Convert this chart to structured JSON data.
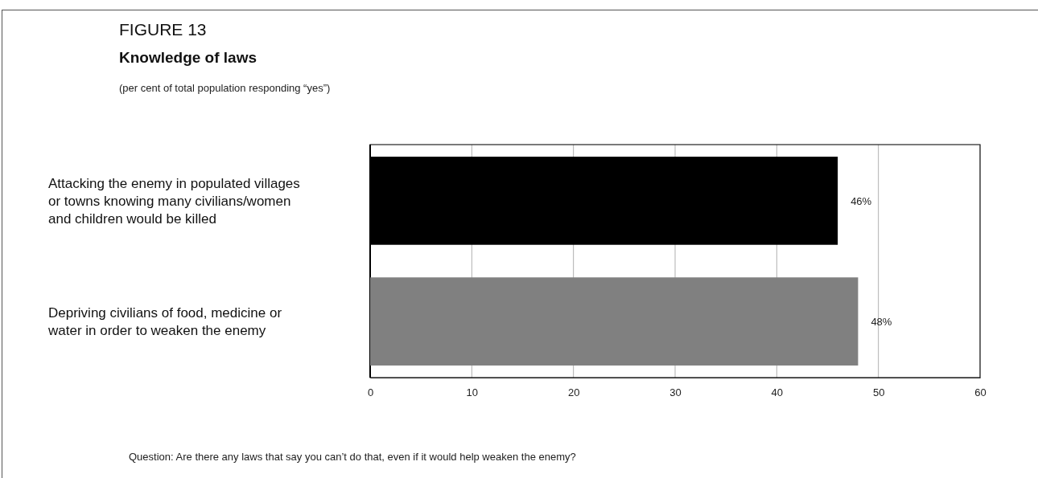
{
  "chart_data": {
    "type": "bar",
    "orientation": "horizontal",
    "title": "Knowledge of laws",
    "subtitle": "(per cent of total population responding “yes”)",
    "annotations": [
      "FIGURE 13",
      "Question: Are there any laws that say you can’t do that, even if it would help weaken the enemy?"
    ],
    "categories": [
      "Attacking the enemy in populated villages or towns knowing many civilians/women and children would be killed",
      "Depriving civilians of food, medicine or water in order to weaken the enemy"
    ],
    "values": [
      46,
      48
    ],
    "colors": [
      "#000000",
      "#808080"
    ],
    "value_labels": [
      "46%",
      "48%"
    ],
    "xlim": [
      0,
      60
    ],
    "xticks": [
      0,
      10,
      20,
      30,
      40,
      50,
      60
    ],
    "grid": "x"
  }
}
